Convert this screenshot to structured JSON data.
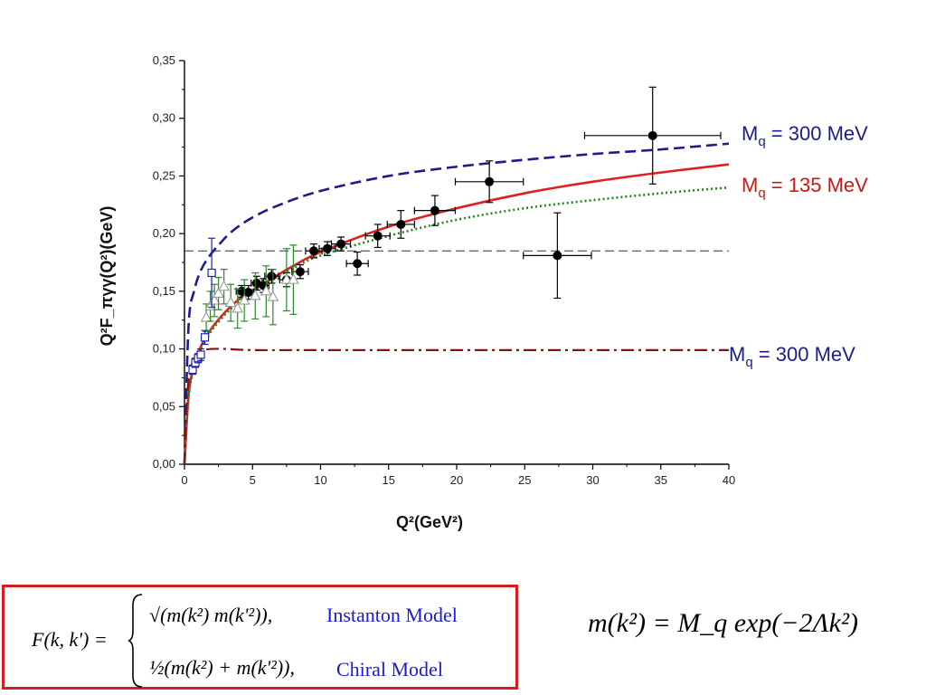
{
  "chart_data": {
    "type": "scatter",
    "title": "",
    "xlabel": "Q²(GeV²)",
    "ylabel": "Q²F_πγγ(Q²)(GeV)",
    "xlim": [
      0,
      40
    ],
    "ylim": [
      0,
      0.35
    ],
    "x_ticks": [
      "0",
      "5",
      "10",
      "15",
      "20",
      "25",
      "30",
      "35",
      "40"
    ],
    "y_ticks": [
      "0,00",
      "0,05",
      "0,10",
      "0,15",
      "0,20",
      "0,25",
      "0,30",
      "0,35"
    ],
    "grid": false,
    "reference_line": {
      "y": 0.185,
      "style": "dashed",
      "color": "#333333"
    },
    "series": [
      {
        "name": "",
        "kind": "points",
        "marker": "filled-circle",
        "color": "#000000",
        "points": [
          {
            "x": 4.2,
            "y": 0.15,
            "xerr": 0.4,
            "yerr": 0.005
          },
          {
            "x": 4.7,
            "y": 0.149,
            "xerr": 0.4,
            "yerr": 0.006
          },
          {
            "x": 5.3,
            "y": 0.157,
            "xerr": 0.4,
            "yerr": 0.006
          },
          {
            "x": 5.8,
            "y": 0.155,
            "xerr": 0.4,
            "yerr": 0.006
          },
          {
            "x": 6.4,
            "y": 0.163,
            "xerr": 0.5,
            "yerr": 0.006
          },
          {
            "x": 7.5,
            "y": 0.16,
            "xerr": 0.5,
            "yerr": 0.006
          },
          {
            "x": 8.5,
            "y": 0.167,
            "xerr": 0.6,
            "yerr": 0.006
          },
          {
            "x": 9.5,
            "y": 0.185,
            "xerr": 0.6,
            "yerr": 0.006
          },
          {
            "x": 10.5,
            "y": 0.187,
            "xerr": 0.6,
            "yerr": 0.006
          },
          {
            "x": 11.5,
            "y": 0.191,
            "xerr": 0.7,
            "yerr": 0.006
          },
          {
            "x": 12.7,
            "y": 0.174,
            "xerr": 0.8,
            "yerr": 0.01
          },
          {
            "x": 14.2,
            "y": 0.198,
            "xerr": 0.9,
            "yerr": 0.01
          },
          {
            "x": 15.9,
            "y": 0.208,
            "xerr": 1.0,
            "yerr": 0.012
          },
          {
            "x": 18.4,
            "y": 0.22,
            "xerr": 1.5,
            "yerr": 0.013
          },
          {
            "x": 22.4,
            "y": 0.245,
            "xerr": 2.5,
            "yerr": 0.018
          },
          {
            "x": 27.4,
            "y": 0.181,
            "xerr": 2.5,
            "yerr": 0.037
          },
          {
            "x": 34.4,
            "y": 0.285,
            "xerr": 5.0,
            "yerr": 0.042
          }
        ]
      },
      {
        "name": "",
        "kind": "points",
        "marker": "open-triangle",
        "color": "#2a8a2a",
        "points": [
          {
            "x": 1.6,
            "y": 0.127,
            "yerr": 0.012
          },
          {
            "x": 1.9,
            "y": 0.137,
            "yerr": 0.013
          },
          {
            "x": 2.2,
            "y": 0.142,
            "yerr": 0.014
          },
          {
            "x": 2.5,
            "y": 0.148,
            "yerr": 0.014
          },
          {
            "x": 2.9,
            "y": 0.154,
            "yerr": 0.015
          },
          {
            "x": 3.4,
            "y": 0.14,
            "yerr": 0.016
          },
          {
            "x": 3.9,
            "y": 0.135,
            "yerr": 0.017
          },
          {
            "x": 4.4,
            "y": 0.142,
            "yerr": 0.018
          },
          {
            "x": 5.2,
            "y": 0.146,
            "yerr": 0.02
          },
          {
            "x": 6.0,
            "y": 0.15,
            "yerr": 0.022
          },
          {
            "x": 6.5,
            "y": 0.145,
            "yerr": 0.024
          },
          {
            "x": 7.5,
            "y": 0.16,
            "yerr": 0.027
          },
          {
            "x": 8.0,
            "y": 0.16,
            "yerr": 0.03
          }
        ]
      },
      {
        "name": "",
        "kind": "points",
        "marker": "open-square",
        "color": "#2222aa",
        "points": [
          {
            "x": 0.6,
            "y": 0.082,
            "yerr": 0.004
          },
          {
            "x": 0.8,
            "y": 0.088,
            "yerr": 0.004
          },
          {
            "x": 1.0,
            "y": 0.092,
            "yerr": 0.004
          },
          {
            "x": 1.2,
            "y": 0.095,
            "yerr": 0.005
          },
          {
            "x": 1.5,
            "y": 0.11,
            "yerr": 0.006
          },
          {
            "x": 2.0,
            "y": 0.166,
            "yerr": 0.03
          }
        ]
      },
      {
        "name": "Mq = 300 MeV",
        "kind": "curve",
        "style": "dashed",
        "color": "#1c1c8c",
        "x": [
          0,
          0.3,
          0.7,
          1.2,
          1.8,
          2.5,
          3.5,
          5,
          7,
          10,
          15,
          20,
          25,
          30,
          35,
          40
        ],
        "y": [
          0,
          0.12,
          0.15,
          0.168,
          0.18,
          0.19,
          0.202,
          0.214,
          0.225,
          0.237,
          0.25,
          0.258,
          0.264,
          0.269,
          0.273,
          0.278
        ]
      },
      {
        "name": "Mq = 135 MeV",
        "kind": "curve",
        "style": "solid",
        "color": "#e02020",
        "x": [
          0,
          0.3,
          0.7,
          1.2,
          2,
          3,
          4,
          5,
          6,
          8,
          10,
          15,
          20,
          25,
          30,
          35,
          40
        ],
        "y": [
          0,
          0.06,
          0.085,
          0.102,
          0.118,
          0.132,
          0.143,
          0.151,
          0.158,
          0.172,
          0.184,
          0.206,
          0.222,
          0.235,
          0.245,
          0.253,
          0.26
        ]
      },
      {
        "name": "",
        "kind": "curve",
        "style": "dotted",
        "color": "#1a8a1a",
        "x": [
          0,
          0.3,
          0.7,
          1.2,
          2,
          3,
          4,
          5,
          6,
          8,
          10,
          15,
          20,
          25,
          30,
          35,
          40
        ],
        "y": [
          0,
          0.058,
          0.083,
          0.1,
          0.116,
          0.13,
          0.141,
          0.15,
          0.157,
          0.17,
          0.181,
          0.198,
          0.212,
          0.222,
          0.229,
          0.235,
          0.24
        ]
      },
      {
        "name": "Mq = 300 MeV",
        "kind": "curve",
        "style": "dash-dot",
        "color": "#8b1010",
        "x": [
          0,
          0.2,
          0.5,
          1.0,
          1.5,
          2.0,
          3.0,
          5,
          10,
          20,
          30,
          40
        ],
        "y": [
          0,
          0.06,
          0.085,
          0.096,
          0.099,
          0.1,
          0.1,
          0.099,
          0.099,
          0.099,
          0.099,
          0.099
        ]
      }
    ],
    "curve_labels": [
      {
        "text": "M",
        "sub": "q",
        "rest": " = 300 MeV",
        "color": "#1c1c8c"
      },
      {
        "text": "M",
        "sub": "q",
        "rest": " = 135 MeV",
        "color": "#d01515"
      },
      {
        "text": "M",
        "sub": "q",
        "rest": " = 300 MeV",
        "color": "#1c1c8c"
      }
    ]
  },
  "formula": {
    "lhs": "F(k, k') =",
    "row1_expr": "√(m(k²) m(k'²)),",
    "row1_label": "Instanton Model",
    "row2_expr": "½(m(k²) + m(k'²)),",
    "row2_label": "Chiral Model"
  },
  "mass_formula": "m(k²) = M_q exp(−2Λk²)"
}
